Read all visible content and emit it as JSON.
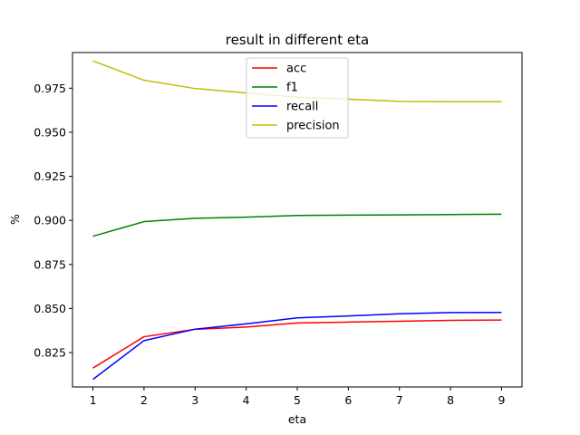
{
  "chart_data": {
    "type": "line",
    "title": "result in different eta",
    "xlabel": "eta",
    "ylabel": "%",
    "x": [
      1,
      2,
      3,
      4,
      5,
      6,
      7,
      8,
      9
    ],
    "xticks": [
      "1",
      "2",
      "3",
      "4",
      "5",
      "6",
      "7",
      "8",
      "9"
    ],
    "yticks": [
      "0.825",
      "0.850",
      "0.875",
      "0.900",
      "0.925",
      "0.950",
      "0.975"
    ],
    "xlim": [
      0.6,
      9.4
    ],
    "ylim": [
      0.8055,
      0.9952
    ],
    "grid": false,
    "legend_position": "upper-center",
    "series": [
      {
        "name": "acc",
        "color": "#ff0000",
        "values": [
          0.8162,
          0.834,
          0.8382,
          0.8395,
          0.8418,
          0.8423,
          0.8428,
          0.8433,
          0.8435
        ]
      },
      {
        "name": "f1",
        "color": "#008000",
        "values": [
          0.891,
          0.8993,
          0.9012,
          0.9018,
          0.9028,
          0.903,
          0.9031,
          0.9033,
          0.9035
        ]
      },
      {
        "name": "recall",
        "color": "#0000ff",
        "values": [
          0.8098,
          0.8318,
          0.8383,
          0.8413,
          0.8447,
          0.8458,
          0.847,
          0.8477,
          0.8478
        ]
      },
      {
        "name": "precision",
        "color": "#bfbf00",
        "values": [
          0.9905,
          0.9795,
          0.9748,
          0.9723,
          0.9698,
          0.9688,
          0.9675,
          0.9673,
          0.9673
        ]
      }
    ]
  }
}
